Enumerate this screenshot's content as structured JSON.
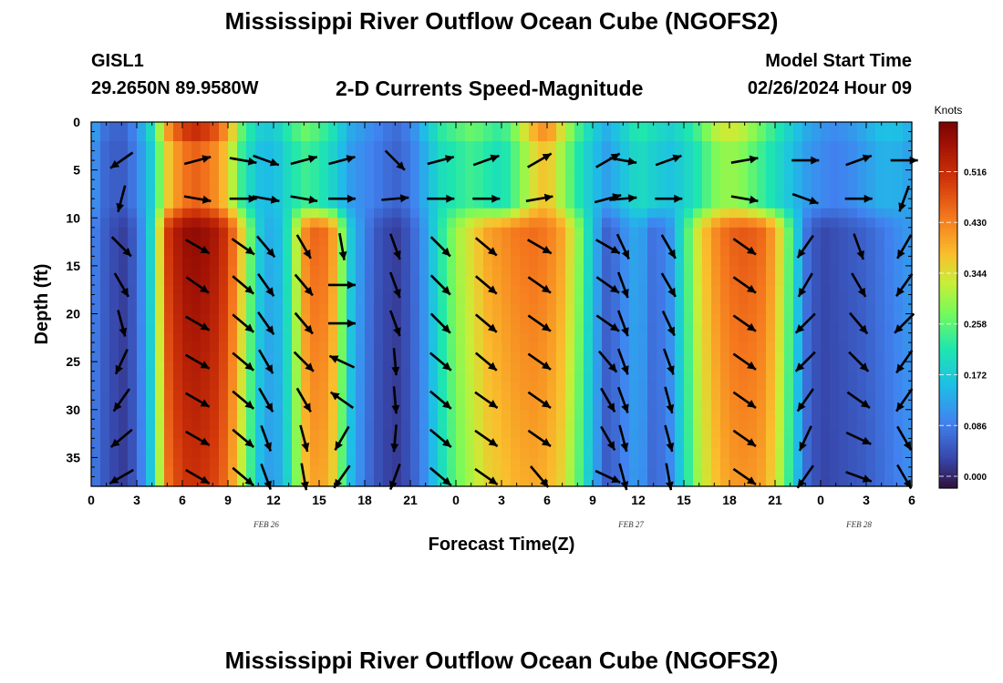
{
  "page": {
    "title": "Mississippi River Outflow Ocean Cube (NGOFS2)",
    "footer_title": "Mississippi River Outflow Ocean Cube (NGOFS2)",
    "station": "GISL1",
    "coords": "29.2650N  89.9580W",
    "plot_title": "2-D Currents Speed-Magnitude",
    "model_start_label": "Model Start Time",
    "model_start_value": "02/26/2024 Hour 09"
  },
  "chart_data": {
    "type": "heatmap",
    "title": "2-D Currents Speed-Magnitude",
    "xlabel": "Forecast Time(Z)",
    "ylabel": "Depth (ft)",
    "x_tick_labels": [
      "0",
      "3",
      "6",
      "9",
      "12",
      "15",
      "18",
      "21",
      "0",
      "3",
      "6",
      "9",
      "12",
      "15",
      "18",
      "21",
      "0",
      "3",
      "6"
    ],
    "x_range_hours": [
      0,
      54
    ],
    "date_labels": [
      {
        "text": "FEB 26",
        "hour": 12
      },
      {
        "text": "FEB 27",
        "hour": 36
      },
      {
        "text": "FEB 28",
        "hour": 51
      }
    ],
    "y_tick_labels": [
      "0",
      "5",
      "10",
      "15",
      "20",
      "25",
      "30",
      "35"
    ],
    "y_range_ft": [
      0,
      38
    ],
    "colorbar": {
      "title": "Knots",
      "tick_labels": [
        "0.000",
        "0.086",
        "0.172",
        "0.258",
        "0.344",
        "0.430",
        "0.516"
      ],
      "range": [
        -0.02,
        0.6
      ]
    },
    "speed_profile": {
      "note": "approx. speed (knots) vs forecast hour, deep (>10 ft) and surface (<10 ft) layers",
      "hours": [
        0,
        1,
        2,
        3,
        4,
        5,
        6,
        7,
        8,
        9,
        10,
        11,
        12,
        13,
        14,
        15,
        16,
        17,
        18,
        19,
        20,
        21,
        22,
        23,
        24,
        25,
        26,
        27,
        28,
        29,
        30,
        31,
        32,
        33,
        34,
        35,
        36,
        37,
        38,
        39,
        40,
        41,
        42,
        43,
        44,
        45,
        46,
        47,
        48,
        49,
        50,
        51,
        52,
        53,
        54
      ],
      "deep": [
        0.1,
        0.05,
        0.02,
        0.06,
        0.2,
        0.5,
        0.57,
        0.58,
        0.56,
        0.5,
        0.35,
        0.18,
        0.12,
        0.22,
        0.42,
        0.47,
        0.4,
        0.18,
        0.09,
        0.04,
        0.02,
        0.05,
        0.12,
        0.22,
        0.3,
        0.35,
        0.4,
        0.42,
        0.44,
        0.45,
        0.44,
        0.4,
        0.3,
        0.16,
        0.05,
        0.1,
        0.14,
        0.07,
        0.1,
        0.22,
        0.35,
        0.42,
        0.46,
        0.47,
        0.46,
        0.4,
        0.25,
        0.08,
        0.03,
        0.04,
        0.05,
        0.06,
        0.08,
        0.1,
        0.12
      ],
      "surface": [
        0.12,
        0.06,
        0.05,
        0.09,
        0.18,
        0.36,
        0.44,
        0.46,
        0.43,
        0.36,
        0.22,
        0.16,
        0.15,
        0.2,
        0.24,
        0.22,
        0.18,
        0.12,
        0.1,
        0.08,
        0.06,
        0.08,
        0.14,
        0.2,
        0.22,
        0.24,
        0.22,
        0.2,
        0.26,
        0.34,
        0.38,
        0.3,
        0.22,
        0.16,
        0.12,
        0.16,
        0.2,
        0.18,
        0.16,
        0.18,
        0.22,
        0.28,
        0.3,
        0.28,
        0.24,
        0.2,
        0.16,
        0.12,
        0.1,
        0.09,
        0.1,
        0.12,
        0.14,
        0.14,
        0.12
      ]
    },
    "vectors": {
      "note": "current direction arrows (bearing degrees, 0=north/up, 90=east/right), columns at forecast hours, rows at depths",
      "depths": [
        4,
        8,
        13,
        17,
        21,
        25,
        29,
        33,
        37
      ],
      "columns": [
        {
          "hour": 2,
          "bearings": [
            235,
            195,
            135,
            150,
            165,
            205,
            215,
            230,
            240
          ]
        },
        {
          "hour": 7,
          "bearings": [
            75,
            100,
            120,
            125,
            120,
            120,
            120,
            120,
            120
          ]
        },
        {
          "hour": 10,
          "bearings": [
            100,
            90,
            125,
            130,
            130,
            130,
            130,
            130,
            130
          ]
        },
        {
          "hour": 11.5,
          "bearings": [
            110,
            100,
            140,
            145,
            145,
            150,
            150,
            160,
            160
          ]
        },
        {
          "hour": 14,
          "bearings": [
            75,
            100,
            150,
            140,
            140,
            135,
            150,
            165,
            170
          ]
        },
        {
          "hour": 16.5,
          "bearings": [
            75,
            90,
            170,
            90,
            90,
            295,
            305,
            210,
            215
          ]
        },
        {
          "hour": 20,
          "bearings": [
            135,
            85,
            160,
            160,
            160,
            175,
            175,
            185,
            200
          ]
        },
        {
          "hour": 23,
          "bearings": [
            75,
            90,
            135,
            135,
            135,
            130,
            130,
            130,
            130
          ]
        },
        {
          "hour": 26,
          "bearings": [
            70,
            90,
            130,
            130,
            130,
            130,
            125,
            125,
            125
          ]
        },
        {
          "hour": 29.5,
          "bearings": [
            60,
            80,
            120,
            125,
            125,
            125,
            125,
            125,
            140
          ]
        },
        {
          "hour": 34,
          "bearings": [
            60,
            75,
            120,
            125,
            125,
            140,
            150,
            150,
            115
          ]
        },
        {
          "hour": 35,
          "bearings": [
            100,
            85,
            155,
            160,
            160,
            160,
            160,
            165,
            165
          ]
        },
        {
          "hour": 38,
          "bearings": [
            70,
            90,
            150,
            150,
            155,
            160,
            165,
            165,
            170
          ]
        },
        {
          "hour": 43,
          "bearings": [
            80,
            100,
            125,
            125,
            125,
            125,
            125,
            125,
            125
          ]
        },
        {
          "hour": 47,
          "bearings": [
            90,
            110,
            215,
            210,
            225,
            225,
            215,
            205,
            215
          ]
        },
        {
          "hour": 50.5,
          "bearings": [
            70,
            90,
            160,
            150,
            140,
            135,
            125,
            115,
            110
          ]
        },
        {
          "hour": 53.5,
          "bearings": [
            90,
            200,
            210,
            215,
            225,
            215,
            215,
            150,
            150
          ]
        }
      ]
    }
  }
}
